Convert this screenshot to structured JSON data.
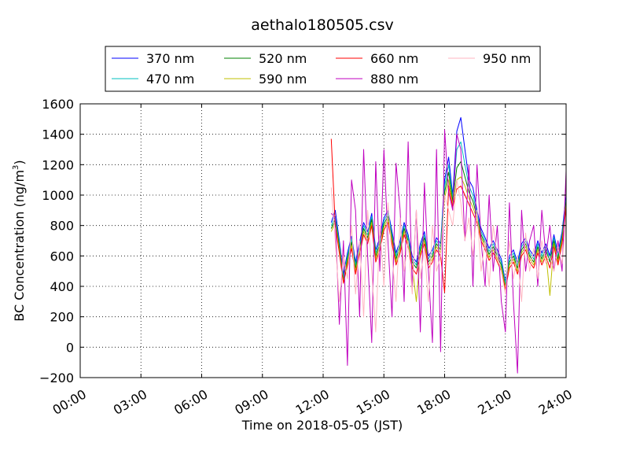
{
  "chart_data": {
    "type": "line",
    "title": "aethalo180505.csv",
    "xlabel": "Time on 2018-05-05 (JST)",
    "ylabel_main": "BC Concentration (ng/m",
    "ylabel_sup": "3",
    "ylabel_close": ")",
    "xlim": [
      0,
      24
    ],
    "ylim": [
      -200,
      1600
    ],
    "xticks": [
      0,
      3,
      6,
      9,
      12,
      15,
      18,
      21,
      24
    ],
    "xtick_labels": [
      "00:00",
      "03:00",
      "06:00",
      "09:00",
      "12:00",
      "15:00",
      "18:00",
      "21:00",
      "24:00"
    ],
    "yticks": [
      -200,
      0,
      200,
      400,
      600,
      800,
      1000,
      1200,
      1400,
      1600
    ],
    "ytick_labels": [
      "−200",
      "0",
      "200",
      "400",
      "600",
      "800",
      "1000",
      "1200",
      "1400",
      "1600"
    ],
    "grid": true,
    "legend_position": "top",
    "x": [
      12.4,
      12.6,
      12.8,
      13.0,
      13.2,
      13.4,
      13.6,
      13.8,
      14.0,
      14.2,
      14.4,
      14.6,
      14.8,
      15.0,
      15.2,
      15.4,
      15.6,
      15.8,
      16.0,
      16.2,
      16.4,
      16.6,
      16.8,
      17.0,
      17.2,
      17.4,
      17.6,
      17.8,
      18.0,
      18.2,
      18.4,
      18.6,
      18.8,
      19.0,
      19.2,
      19.4,
      19.6,
      19.8,
      20.0,
      20.2,
      20.4,
      20.6,
      20.8,
      21.0,
      21.2,
      21.4,
      21.6,
      21.8,
      22.0,
      22.2,
      22.4,
      22.6,
      22.8,
      23.0,
      23.2,
      23.4,
      23.6,
      23.8,
      24.0
    ],
    "series": [
      {
        "name": "370 nm",
        "color": "#0000ff",
        "values": [
          820,
          900,
          700,
          480,
          620,
          730,
          560,
          690,
          820,
          760,
          880,
          640,
          720,
          850,
          900,
          760,
          620,
          700,
          820,
          740,
          600,
          560,
          680,
          760,
          600,
          640,
          720,
          680,
          1100,
          1250,
          1000,
          1420,
          1510,
          1300,
          1100,
          1050,
          900,
          780,
          720,
          650,
          700,
          640,
          580,
          430,
          600,
          640,
          560,
          680,
          720,
          640,
          600,
          700,
          620,
          680,
          600,
          740,
          620,
          760,
          1000
        ]
      },
      {
        "name": "470 nm",
        "color": "#00bfbf",
        "values": [
          800,
          860,
          680,
          460,
          600,
          710,
          540,
          670,
          800,
          740,
          860,
          620,
          700,
          830,
          880,
          740,
          600,
          680,
          800,
          720,
          580,
          540,
          660,
          740,
          580,
          620,
          700,
          660,
          1060,
          1200,
          980,
          1300,
          1350,
          1200,
          1060,
          1000,
          880,
          760,
          700,
          630,
          680,
          620,
          560,
          420,
          580,
          620,
          540,
          660,
          700,
          620,
          580,
          680,
          600,
          660,
          580,
          720,
          600,
          740,
          980
        ]
      },
      {
        "name": "520 nm",
        "color": "#008000",
        "values": [
          780,
          840,
          660,
          440,
          580,
          690,
          520,
          650,
          780,
          720,
          840,
          600,
          680,
          810,
          860,
          720,
          580,
          660,
          780,
          700,
          560,
          520,
          640,
          720,
          560,
          600,
          680,
          640,
          1020,
          1150,
          960,
          1180,
          1220,
          1120,
          1020,
          960,
          860,
          740,
          680,
          610,
          660,
          600,
          540,
          400,
          560,
          600,
          520,
          640,
          680,
          600,
          560,
          660,
          580,
          640,
          560,
          700,
          580,
          720,
          960
        ]
      },
      {
        "name": "590 nm",
        "color": "#bfbf00",
        "values": [
          760,
          820,
          640,
          430,
          560,
          670,
          500,
          630,
          760,
          700,
          820,
          580,
          660,
          790,
          840,
          700,
          560,
          640,
          760,
          680,
          540,
          300,
          620,
          700,
          540,
          580,
          660,
          620,
          980,
          1100,
          940,
          1100,
          1120,
          1060,
          980,
          920,
          840,
          720,
          660,
          590,
          640,
          580,
          520,
          390,
          540,
          580,
          500,
          620,
          660,
          580,
          540,
          640,
          560,
          620,
          340,
          680,
          560,
          700,
          940
        ]
      },
      {
        "name": "660 nm",
        "color": "#ff0000",
        "values": [
          1370,
          800,
          620,
          420,
          540,
          650,
          480,
          610,
          740,
          680,
          800,
          560,
          640,
          770,
          820,
          680,
          540,
          620,
          740,
          660,
          520,
          480,
          600,
          680,
          520,
          560,
          640,
          600,
          360,
          1060,
          920,
          1040,
          1060,
          1000,
          940,
          880,
          820,
          700,
          640,
          570,
          620,
          560,
          500,
          380,
          520,
          560,
          480,
          600,
          640,
          560,
          520,
          620,
          540,
          600,
          520,
          660,
          540,
          680,
          920
        ]
      },
      {
        "name": "880 nm",
        "color": "#bf00bf",
        "values": [
          880,
          850,
          150,
          700,
          -120,
          1100,
          900,
          200,
          1300,
          600,
          30,
          1220,
          500,
          1300,
          700,
          200,
          1210,
          900,
          300,
          1350,
          400,
          900,
          100,
          1080,
          500,
          30,
          1300,
          -30,
          1430,
          1020,
          900,
          1400,
          1300,
          700,
          1200,
          400,
          1200,
          700,
          400,
          1000,
          500,
          800,
          300,
          100,
          950,
          300,
          -170,
          900,
          500,
          700,
          800,
          400,
          900,
          600,
          800,
          500,
          700,
          500,
          1160
        ]
      },
      {
        "name": "950 nm",
        "color": "#ffb6c1",
        "values": [
          1050,
          700,
          300,
          600,
          450,
          800,
          350,
          700,
          200,
          900,
          500,
          100,
          800,
          400,
          950,
          600,
          300,
          850,
          500,
          700,
          350,
          900,
          450,
          650,
          300,
          800,
          500,
          600,
          1000,
          900,
          800,
          1100,
          950,
          700,
          850,
          600,
          900,
          500,
          700,
          400,
          800,
          600,
          500,
          350,
          700,
          450,
          600,
          300,
          750,
          500,
          650,
          450,
          700,
          550,
          600,
          500,
          650,
          550,
          850
        ]
      }
    ]
  }
}
